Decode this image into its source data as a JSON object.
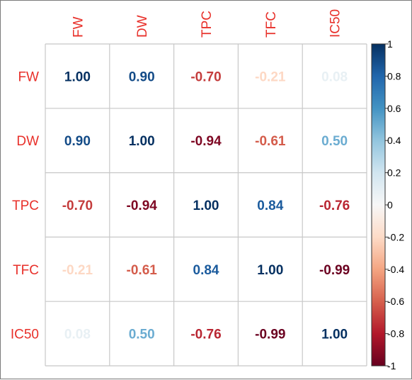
{
  "chart_data": {
    "type": "heatmap",
    "title": "",
    "variables": [
      "FW",
      "DW",
      "TPC",
      "TFC",
      "IC50"
    ],
    "matrix": [
      [
        1.0,
        0.9,
        -0.7,
        -0.21,
        0.08
      ],
      [
        0.9,
        1.0,
        -0.94,
        -0.61,
        0.5
      ],
      [
        -0.7,
        -0.94,
        1.0,
        0.84,
        -0.76
      ],
      [
        -0.21,
        -0.61,
        0.84,
        1.0,
        -0.99
      ],
      [
        0.08,
        0.5,
        -0.76,
        -0.99,
        1.0
      ]
    ],
    "value_labels": [
      [
        "1.00",
        "0.90",
        "-0.70",
        "-0.21",
        "0.08"
      ],
      [
        "0.90",
        "1.00",
        "-0.94",
        "-0.61",
        "0.50"
      ],
      [
        "-0.70",
        "-0.94",
        "1.00",
        "0.84",
        "-0.76"
      ],
      [
        "-0.21",
        "-0.61",
        "0.84",
        "1.00",
        "-0.99"
      ],
      [
        "0.08",
        "0.50",
        "-0.76",
        "-0.99",
        "1.00"
      ]
    ],
    "colorbar": {
      "range": [
        -1,
        1
      ],
      "ticks": [
        1,
        0.8,
        0.6,
        0.4,
        0.2,
        0,
        -0.2,
        -0.4,
        -0.6,
        -0.8,
        -1
      ],
      "tick_labels": [
        "1",
        "0.8",
        "0.6",
        "0.4",
        "0.2",
        "0",
        "-0.2",
        "-0.4",
        "-0.6",
        "-0.8",
        "-1"
      ],
      "placement": "right"
    },
    "colors": {
      "label": "#e8302a",
      "grid": "#c8c8c8",
      "scale_negative": "#67001f",
      "scale_mid": "#f7f7f7",
      "scale_positive": "#053061"
    }
  }
}
